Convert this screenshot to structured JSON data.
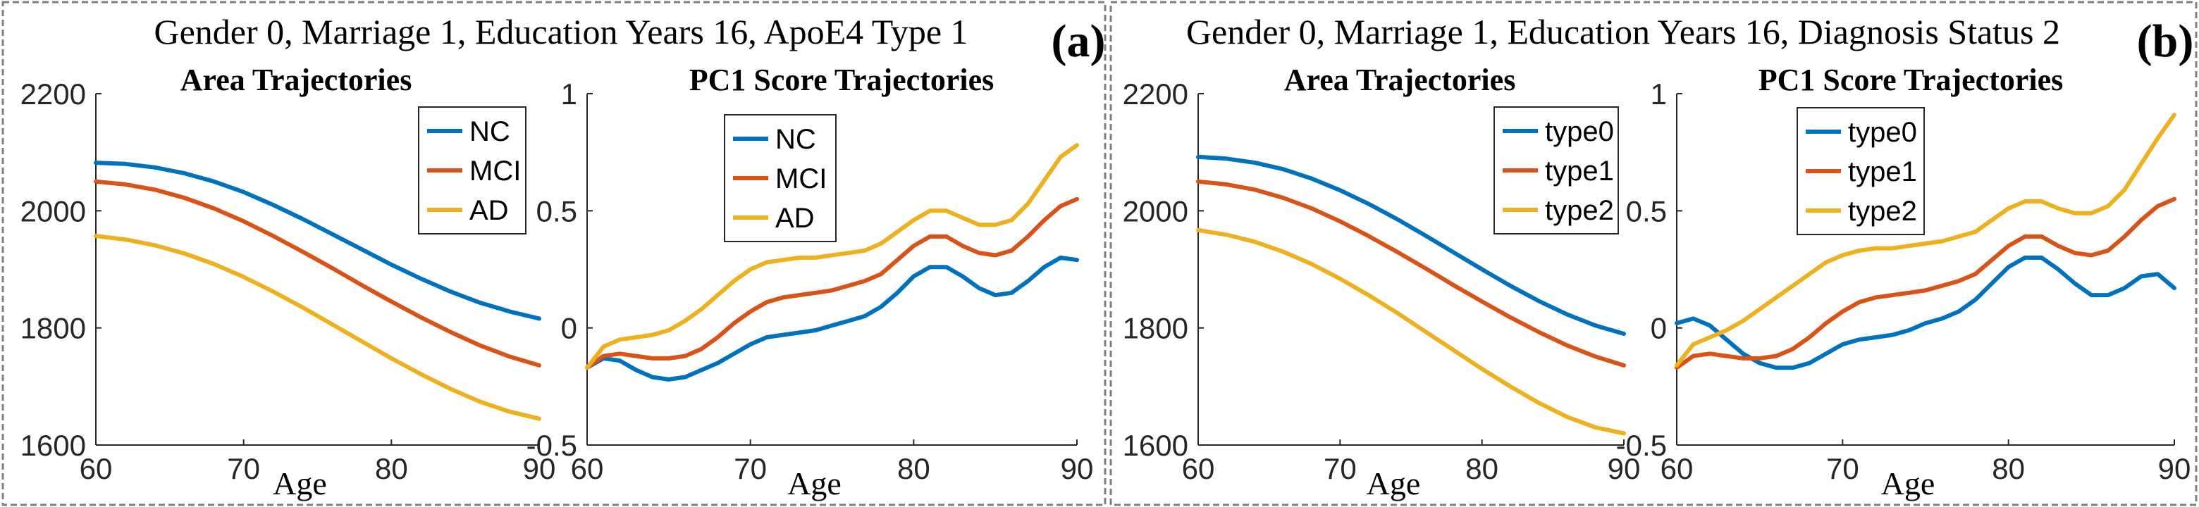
{
  "panels": [
    {
      "id": "a",
      "title": "Gender 0, Marriage 1, Education Years 16, ApoE4 Type 1",
      "label": "(a)"
    },
    {
      "id": "b",
      "title": "Gender 0, Marriage 1, Education Years 16, Diagnosis Status 2",
      "label": "(b)"
    }
  ],
  "colors": {
    "series1": "#0072BD",
    "series2": "#D95319",
    "series3": "#EDB120",
    "panel_border": "#7f7f7f"
  },
  "chart_data": [
    {
      "type": "line",
      "panel": "a",
      "title": "Area Trajectories",
      "xlabel": "Age",
      "ylabel": "",
      "xlim": [
        60,
        90
      ],
      "ylim": [
        1600,
        2200
      ],
      "xticks": [
        60,
        70,
        80,
        90
      ],
      "yticks": [
        1600,
        1800,
        2000,
        2200
      ],
      "legend_position": "top-right",
      "x": [
        60,
        62,
        64,
        66,
        68,
        70,
        72,
        74,
        76,
        78,
        80,
        82,
        84,
        86,
        88,
        90
      ],
      "series": [
        {
          "name": "NC",
          "values": [
            2082,
            2080,
            2074,
            2064,
            2050,
            2032,
            2010,
            1986,
            1960,
            1934,
            1908,
            1884,
            1862,
            1843,
            1828,
            1816
          ]
        },
        {
          "name": "MCI",
          "values": [
            2050,
            2045,
            2036,
            2022,
            2004,
            1982,
            1957,
            1930,
            1902,
            1873,
            1845,
            1818,
            1793,
            1770,
            1751,
            1736
          ]
        },
        {
          "name": "AD",
          "values": [
            1957,
            1951,
            1941,
            1927,
            1909,
            1887,
            1862,
            1835,
            1806,
            1777,
            1748,
            1721,
            1696,
            1674,
            1657,
            1645
          ]
        }
      ]
    },
    {
      "type": "line",
      "panel": "a",
      "title": "PC1 Score Trajectories",
      "xlabel": "Age",
      "ylabel": "",
      "xlim": [
        60,
        90
      ],
      "ylim": [
        -0.5,
        1
      ],
      "xticks": [
        60,
        70,
        80,
        90
      ],
      "yticks": [
        -0.5,
        0,
        0.5,
        1
      ],
      "legend_position": "top-left",
      "x": [
        60,
        61,
        62,
        63,
        64,
        65,
        66,
        67,
        68,
        69,
        70,
        71,
        72,
        73,
        74,
        75,
        76,
        77,
        78,
        79,
        80,
        81,
        82,
        83,
        84,
        85,
        86,
        87,
        88,
        89,
        90
      ],
      "series": [
        {
          "name": "NC",
          "values": [
            -0.17,
            -0.13,
            -0.14,
            -0.18,
            -0.21,
            -0.22,
            -0.21,
            -0.18,
            -0.15,
            -0.11,
            -0.07,
            -0.04,
            -0.03,
            -0.02,
            -0.01,
            0.01,
            0.03,
            0.05,
            0.09,
            0.15,
            0.22,
            0.26,
            0.26,
            0.22,
            0.17,
            0.14,
            0.15,
            0.2,
            0.26,
            0.3,
            0.29
          ]
        },
        {
          "name": "MCI",
          "values": [
            -0.17,
            -0.12,
            -0.11,
            -0.12,
            -0.13,
            -0.13,
            -0.12,
            -0.09,
            -0.04,
            0.02,
            0.07,
            0.11,
            0.13,
            0.14,
            0.15,
            0.16,
            0.18,
            0.2,
            0.23,
            0.29,
            0.35,
            0.39,
            0.39,
            0.35,
            0.32,
            0.31,
            0.33,
            0.39,
            0.46,
            0.52,
            0.55
          ]
        },
        {
          "name": "AD",
          "values": [
            -0.17,
            -0.08,
            -0.05,
            -0.04,
            -0.03,
            -0.01,
            0.03,
            0.08,
            0.14,
            0.2,
            0.25,
            0.28,
            0.29,
            0.3,
            0.3,
            0.31,
            0.32,
            0.33,
            0.36,
            0.41,
            0.46,
            0.5,
            0.5,
            0.47,
            0.44,
            0.44,
            0.46,
            0.53,
            0.63,
            0.73,
            0.78
          ]
        }
      ]
    },
    {
      "type": "line",
      "panel": "b",
      "title": "Area Trajectories",
      "xlabel": "Age",
      "ylabel": "",
      "xlim": [
        60,
        90
      ],
      "ylim": [
        1600,
        2200
      ],
      "xticks": [
        60,
        70,
        80,
        90
      ],
      "yticks": [
        1600,
        1800,
        2000,
        2200
      ],
      "legend_position": "top-right",
      "x": [
        60,
        62,
        64,
        66,
        68,
        70,
        72,
        74,
        76,
        78,
        80,
        82,
        84,
        86,
        88,
        90
      ],
      "series": [
        {
          "name": "type0",
          "values": [
            2092,
            2089,
            2082,
            2071,
            2055,
            2035,
            2012,
            1986,
            1958,
            1929,
            1900,
            1872,
            1846,
            1823,
            1804,
            1790
          ]
        },
        {
          "name": "type1",
          "values": [
            2050,
            2045,
            2036,
            2022,
            2004,
            1982,
            1957,
            1930,
            1902,
            1873,
            1845,
            1818,
            1793,
            1770,
            1751,
            1736
          ]
        },
        {
          "name": "type2",
          "values": [
            1967,
            1959,
            1947,
            1930,
            1909,
            1884,
            1856,
            1826,
            1794,
            1762,
            1730,
            1700,
            1672,
            1648,
            1630,
            1620
          ]
        }
      ]
    },
    {
      "type": "line",
      "panel": "b",
      "title": "PC1 Score Trajectories",
      "xlabel": "Age",
      "ylabel": "",
      "xlim": [
        60,
        90
      ],
      "ylim": [
        -0.5,
        1
      ],
      "xticks": [
        60,
        70,
        80,
        90
      ],
      "yticks": [
        -0.5,
        0,
        0.5,
        1
      ],
      "legend_position": "top-left",
      "x": [
        60,
        61,
        62,
        63,
        64,
        65,
        66,
        67,
        68,
        69,
        70,
        71,
        72,
        73,
        74,
        75,
        76,
        77,
        78,
        79,
        80,
        81,
        82,
        83,
        84,
        85,
        86,
        87,
        88,
        89,
        90
      ],
      "series": [
        {
          "name": "type0",
          "values": [
            0.02,
            0.04,
            0.01,
            -0.05,
            -0.11,
            -0.15,
            -0.17,
            -0.17,
            -0.15,
            -0.11,
            -0.07,
            -0.05,
            -0.04,
            -0.03,
            -0.01,
            0.02,
            0.04,
            0.07,
            0.12,
            0.19,
            0.26,
            0.3,
            0.3,
            0.25,
            0.19,
            0.14,
            0.14,
            0.17,
            0.22,
            0.23,
            0.17
          ]
        },
        {
          "name": "type1",
          "values": [
            -0.17,
            -0.12,
            -0.11,
            -0.12,
            -0.13,
            -0.13,
            -0.12,
            -0.09,
            -0.04,
            0.02,
            0.07,
            0.11,
            0.13,
            0.14,
            0.15,
            0.16,
            0.18,
            0.2,
            0.23,
            0.29,
            0.35,
            0.39,
            0.39,
            0.35,
            0.32,
            0.31,
            0.33,
            0.39,
            0.46,
            0.52,
            0.55
          ]
        },
        {
          "name": "type2",
          "values": [
            -0.16,
            -0.07,
            -0.04,
            -0.01,
            0.03,
            0.08,
            0.13,
            0.18,
            0.23,
            0.28,
            0.31,
            0.33,
            0.34,
            0.34,
            0.35,
            0.36,
            0.37,
            0.39,
            0.41,
            0.46,
            0.51,
            0.54,
            0.54,
            0.51,
            0.49,
            0.49,
            0.52,
            0.59,
            0.7,
            0.81,
            0.91
          ]
        }
      ]
    }
  ]
}
